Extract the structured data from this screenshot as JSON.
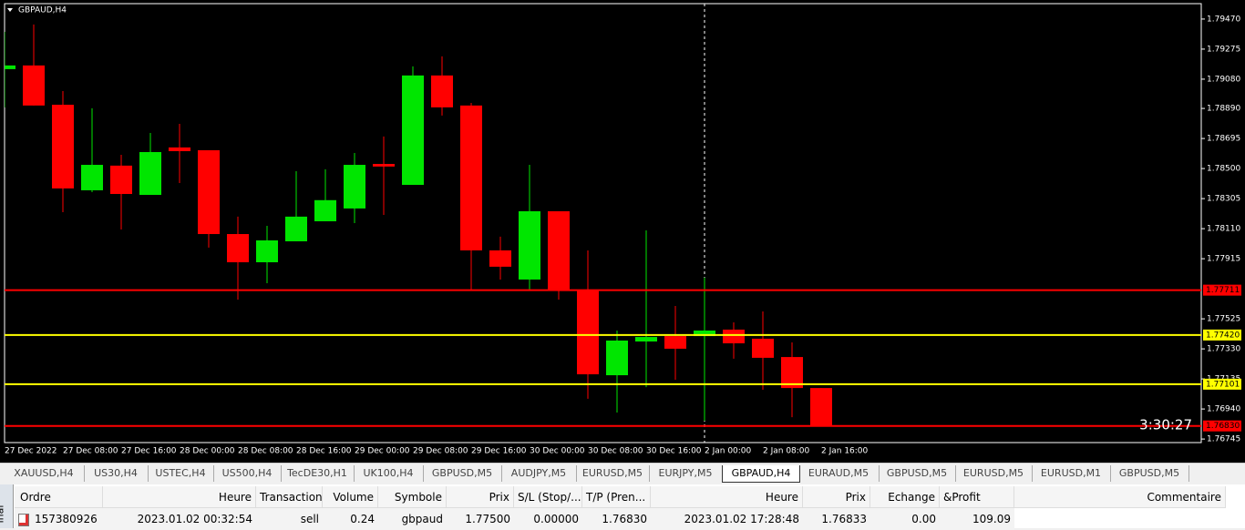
{
  "chart": {
    "type": "candlestick",
    "title": "GBPAUD,H4",
    "timer": "3:30:27",
    "categories": [
      "27 Dec 2022",
      null,
      "27 Dec 08:00",
      null,
      "27 Dec 16:00",
      null,
      "28 Dec 00:00",
      null,
      "28 Dec 08:00",
      null,
      "28 Dec 16:00",
      null,
      "29 Dec 00:00",
      null,
      "29 Dec 08:00",
      null,
      "29 Dec 16:00",
      null,
      "30 Dec 00:00",
      null,
      "30 Dec 08:00",
      null,
      "30 Dec 16:00",
      null,
      "2 Jan 00:00",
      null,
      "2 Jan 08:00",
      null,
      "2 Jan 16:00"
    ],
    "open": [
      1.79145,
      1.79169,
      1.78914,
      1.78359,
      1.78519,
      1.78329,
      1.78637,
      1.78619,
      1.78075,
      1.77892,
      1.78028,
      1.78158,
      1.78241,
      1.7853,
      1.78394,
      1.79104,
      1.78909,
      1.77969,
      1.7778,
      1.78223,
      1.77715,
      1.77159,
      1.77378,
      1.77413,
      1.77413,
      1.77455,
      1.77396,
      1.77277,
      1.77076
    ],
    "high": [
      1.79387,
      1.79435,
      1.79003,
      1.78891,
      1.78589,
      1.78731,
      1.7879,
      1.78619,
      1.78188,
      1.78128,
      1.78483,
      1.78495,
      1.78601,
      1.78708,
      1.79163,
      1.79228,
      1.78926,
      1.78058,
      1.78524,
      1.78223,
      1.77969,
      1.77449,
      1.78099,
      1.77608,
      1.77792,
      1.77502,
      1.77573,
      1.77372,
      1.77076
    ],
    "low": [
      1.78897,
      1.78909,
      1.78217,
      1.78347,
      1.78105,
      1.78329,
      1.78406,
      1.77987,
      1.7765,
      1.77756,
      1.78028,
      1.78158,
      1.78146,
      1.78199,
      1.78394,
      1.78844,
      1.77715,
      1.7778,
      1.77715,
      1.7765,
      1.77006,
      1.76917,
      1.77082,
      1.7713,
      1.76864,
      1.77266,
      1.77065,
      1.76887,
      1.76833
    ],
    "close": [
      1.79169,
      1.78909,
      1.78371,
      1.78524,
      1.78335,
      1.78607,
      1.78613,
      1.78075,
      1.77892,
      1.78034,
      1.78188,
      1.78295,
      1.78524,
      1.78513,
      1.79104,
      1.78897,
      1.77969,
      1.77863,
      1.78223,
      1.77715,
      1.77165,
      1.77384,
      1.77407,
      1.77331,
      1.77449,
      1.77366,
      1.77272,
      1.77076,
      1.76833
    ],
    "up_color": "#00e600",
    "down_color": "#ff0000",
    "ylim": [
      1.76722,
      1.7957
    ],
    "yticks": [
      {
        "value": 1.7947,
        "label": "1.79470"
      },
      {
        "value": 1.79275,
        "label": "1.79275"
      },
      {
        "value": 1.7908,
        "label": "1.79080"
      },
      {
        "value": 1.7889,
        "label": "1.78890"
      },
      {
        "value": 1.78695,
        "label": "1.78695"
      },
      {
        "value": 1.785,
        "label": "1.78500"
      },
      {
        "value": 1.78305,
        "label": "1.78305"
      },
      {
        "value": 1.7811,
        "label": "1.78110"
      },
      {
        "value": 1.77915,
        "label": "1.77915"
      },
      {
        "value": 1.77525,
        "label": "1.77525"
      },
      {
        "value": 1.7733,
        "label": "1.77330"
      },
      {
        "value": 1.77135,
        "label": "1.77135"
      },
      {
        "value": 1.7694,
        "label": "1.76940"
      },
      {
        "value": 1.76745,
        "label": "1.76745"
      }
    ],
    "levels": [
      {
        "value": 1.77711,
        "label": "1.77711",
        "color": "#ff0000"
      },
      {
        "value": 1.7742,
        "label": "1.77420",
        "color": "#ffff00"
      },
      {
        "value": 1.77101,
        "label": "1.77101",
        "color": "#ffff00"
      },
      {
        "value": 1.7683,
        "label": "1.76830",
        "color": "#ff0000"
      }
    ]
  },
  "tabs": {
    "items": [
      "XAUUSD,H4",
      "US30,H4",
      "USTEC,H4",
      "US500,H4",
      "TecDE30,H1",
      "UK100,H4",
      "GBPUSD,M5",
      "AUDJPY,M5",
      "EURUSD,M5",
      "EURJPY,M5",
      "GBPAUD,H4",
      "EURAUD,M5",
      "GBPUSD,M5",
      "EURUSD,M5",
      "EURUSD,M1",
      "GBPUSD,M5"
    ],
    "active": 10
  },
  "terminal": {
    "side_label": "inal",
    "header": [
      "Ordre",
      "Heure",
      "Transaction",
      "Volume",
      "Symbole",
      "Prix",
      "S/L (Stop/...",
      "T/P (Pren...",
      "Heure",
      "Prix",
      "Echange",
      "&Profit",
      "Commentaire"
    ],
    "rows": [
      [
        "157380926",
        "2023.01.02 00:32:54",
        "sell",
        "0.24",
        "gbpaud",
        "1.77500",
        "0.00000",
        "1.76830",
        "2023.01.02 17:28:48",
        "1.76833",
        "0.00",
        "109.09"
      ]
    ]
  }
}
